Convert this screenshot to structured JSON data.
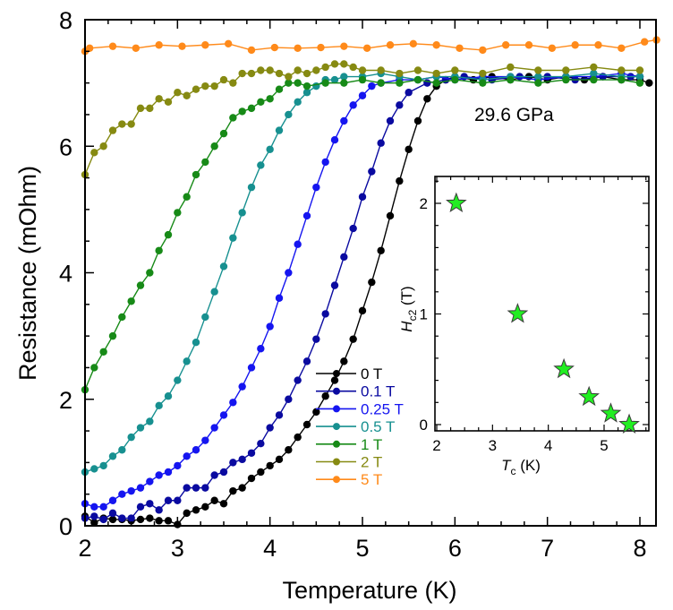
{
  "chart_data": {
    "type": "line",
    "title": "",
    "xlabel": "Temperature (K)",
    "ylabel": "Resistance (mOhm)",
    "xlim": [
      2,
      8.18
    ],
    "ylim": [
      0,
      8
    ],
    "xticks": [
      "2",
      "3",
      "4",
      "5",
      "6",
      "7",
      "8"
    ],
    "yticks": [
      "0",
      "2",
      "4",
      "6",
      "8"
    ],
    "annotation": "29.6 GPa",
    "legend": {
      "position": "lower-center-right"
    },
    "series": [
      {
        "name": "0 T",
        "color": "#000000",
        "x": [
          2.0,
          2.1,
          2.2,
          2.3,
          2.4,
          2.5,
          2.6,
          2.7,
          2.8,
          2.9,
          3.0,
          3.1,
          3.2,
          3.3,
          3.4,
          3.5,
          3.6,
          3.7,
          3.8,
          3.9,
          4.0,
          4.1,
          4.2,
          4.3,
          4.4,
          4.5,
          4.6,
          4.7,
          4.8,
          4.9,
          5.0,
          5.1,
          5.2,
          5.3,
          5.4,
          5.5,
          5.6,
          5.7,
          5.8,
          5.9,
          6.0,
          6.2,
          6.4,
          6.6,
          6.8,
          7.0,
          7.2,
          7.4,
          7.6,
          7.8,
          8.0,
          8.1
        ],
        "y": [
          0.15,
          0.05,
          0.12,
          0.1,
          0.1,
          0.08,
          0.1,
          0.12,
          0.08,
          0.08,
          0.02,
          0.2,
          0.25,
          0.3,
          0.4,
          0.35,
          0.55,
          0.6,
          0.75,
          0.85,
          0.95,
          1.05,
          1.2,
          1.4,
          1.6,
          1.8,
          2.05,
          2.3,
          2.6,
          2.95,
          3.4,
          3.85,
          4.35,
          4.9,
          5.45,
          5.95,
          6.4,
          6.75,
          6.95,
          7.05,
          7.1,
          7.05,
          7.1,
          7.05,
          7.1,
          7.05,
          7.1,
          7.05,
          7.1,
          7.05,
          7.05,
          7.0
        ]
      },
      {
        "name": "0.1 T",
        "color": "#0a0aa0",
        "x": [
          2.0,
          2.1,
          2.2,
          2.3,
          2.4,
          2.5,
          2.6,
          2.7,
          2.8,
          2.9,
          3.0,
          3.1,
          3.2,
          3.3,
          3.4,
          3.5,
          3.6,
          3.7,
          3.8,
          3.9,
          4.0,
          4.1,
          4.2,
          4.3,
          4.4,
          4.5,
          4.6,
          4.7,
          4.8,
          4.9,
          5.0,
          5.1,
          5.2,
          5.3,
          5.4,
          5.5,
          5.7,
          5.9,
          6.1,
          6.4,
          6.7,
          7.0,
          7.3,
          7.6,
          7.9,
          8.0
        ],
        "y": [
          0.12,
          0.15,
          0.1,
          0.2,
          0.12,
          0.12,
          0.3,
          0.35,
          0.25,
          0.4,
          0.4,
          0.6,
          0.6,
          0.6,
          0.8,
          0.85,
          1.0,
          1.05,
          1.15,
          1.3,
          1.55,
          1.75,
          2.0,
          2.3,
          2.6,
          2.95,
          3.35,
          3.8,
          4.25,
          4.7,
          5.2,
          5.6,
          6.05,
          6.4,
          6.65,
          6.85,
          7.0,
          7.05,
          7.1,
          7.05,
          7.1,
          7.1,
          7.05,
          7.1,
          7.1,
          7.1
        ]
      },
      {
        "name": "0.25 T",
        "color": "#1515f0",
        "x": [
          2.0,
          2.1,
          2.2,
          2.3,
          2.4,
          2.5,
          2.6,
          2.7,
          2.8,
          2.9,
          3.0,
          3.1,
          3.2,
          3.3,
          3.4,
          3.5,
          3.6,
          3.7,
          3.8,
          3.9,
          4.0,
          4.1,
          4.2,
          4.3,
          4.4,
          4.5,
          4.6,
          4.7,
          4.8,
          4.9,
          5.0,
          5.1,
          5.2,
          5.4,
          5.6,
          5.8,
          6.0,
          6.3,
          6.6,
          6.9,
          7.2,
          7.5,
          7.8,
          8.0
        ],
        "y": [
          0.35,
          0.3,
          0.3,
          0.4,
          0.5,
          0.55,
          0.6,
          0.7,
          0.8,
          0.85,
          0.95,
          1.1,
          1.2,
          1.35,
          1.55,
          1.75,
          1.95,
          2.2,
          2.5,
          2.8,
          3.15,
          3.6,
          4.0,
          4.45,
          4.9,
          5.35,
          5.75,
          6.1,
          6.4,
          6.65,
          6.8,
          6.95,
          7.0,
          7.05,
          7.05,
          7.1,
          7.05,
          7.1,
          7.1,
          7.05,
          7.1,
          7.1,
          7.15,
          7.1
        ]
      },
      {
        "name": "0.5 T",
        "color": "#179090",
        "x": [
          2.0,
          2.1,
          2.2,
          2.3,
          2.4,
          2.5,
          2.6,
          2.7,
          2.8,
          2.9,
          3.0,
          3.1,
          3.2,
          3.3,
          3.4,
          3.5,
          3.6,
          3.7,
          3.8,
          3.9,
          4.0,
          4.1,
          4.2,
          4.3,
          4.4,
          4.5,
          4.6,
          4.7,
          4.8,
          5.0,
          5.2,
          5.4,
          5.6,
          5.8,
          6.0,
          6.3,
          6.6,
          6.9,
          7.2,
          7.5,
          7.8,
          8.0
        ],
        "y": [
          0.85,
          0.9,
          0.95,
          1.1,
          1.2,
          1.4,
          1.55,
          1.65,
          1.9,
          2.05,
          2.3,
          2.6,
          2.9,
          3.3,
          3.7,
          4.1,
          4.55,
          4.95,
          5.35,
          5.7,
          5.95,
          6.25,
          6.5,
          6.7,
          6.85,
          6.95,
          7.05,
          7.05,
          7.1,
          7.1,
          7.15,
          7.1,
          7.05,
          7.1,
          7.1,
          7.05,
          7.1,
          7.1,
          7.1,
          7.15,
          7.1,
          7.1
        ]
      },
      {
        "name": "1 T",
        "color": "#178a17",
        "x": [
          2.0,
          2.1,
          2.2,
          2.3,
          2.4,
          2.5,
          2.6,
          2.7,
          2.8,
          2.9,
          3.0,
          3.1,
          3.2,
          3.3,
          3.4,
          3.5,
          3.6,
          3.7,
          3.8,
          3.9,
          4.0,
          4.1,
          4.2,
          4.3,
          4.4,
          4.6,
          4.8,
          5.0,
          5.2,
          5.4,
          5.6,
          5.8,
          6.0,
          6.3,
          6.6,
          6.9,
          7.2,
          7.5,
          7.8,
          8.0
        ],
        "y": [
          2.15,
          2.5,
          2.75,
          3.0,
          3.3,
          3.55,
          3.8,
          4.0,
          4.35,
          4.6,
          4.95,
          5.2,
          5.55,
          5.75,
          6.0,
          6.2,
          6.45,
          6.55,
          6.6,
          6.7,
          6.75,
          6.9,
          7.0,
          7.0,
          6.95,
          7.0,
          7.0,
          7.05,
          7.0,
          7.0,
          7.05,
          7.0,
          7.05,
          7.0,
          7.05,
          7.0,
          7.05,
          7.05,
          7.05,
          7.0
        ]
      },
      {
        "name": "2 T",
        "color": "#868a12",
        "x": [
          2.0,
          2.1,
          2.2,
          2.3,
          2.4,
          2.5,
          2.6,
          2.7,
          2.8,
          2.9,
          3.0,
          3.1,
          3.2,
          3.3,
          3.4,
          3.5,
          3.6,
          3.7,
          3.8,
          3.9,
          4.0,
          4.1,
          4.2,
          4.3,
          4.4,
          4.5,
          4.6,
          4.7,
          4.8,
          4.9,
          5.0,
          5.2,
          5.4,
          5.6,
          5.8,
          6.0,
          6.3,
          6.6,
          6.9,
          7.2,
          7.5,
          7.8,
          8.0
        ],
        "y": [
          5.55,
          5.9,
          6.0,
          6.25,
          6.35,
          6.35,
          6.6,
          6.6,
          6.75,
          6.7,
          6.85,
          6.8,
          6.9,
          6.95,
          6.95,
          7.05,
          7.0,
          7.15,
          7.15,
          7.2,
          7.2,
          7.15,
          7.1,
          7.2,
          7.15,
          7.2,
          7.25,
          7.3,
          7.3,
          7.25,
          7.2,
          7.2,
          7.15,
          7.2,
          7.15,
          7.2,
          7.15,
          7.25,
          7.2,
          7.2,
          7.25,
          7.2,
          7.2
        ]
      },
      {
        "name": "5 T",
        "color": "#ff8a1a",
        "x": [
          2.0,
          2.05,
          2.3,
          2.55,
          2.8,
          3.05,
          3.3,
          3.55,
          3.8,
          4.05,
          4.3,
          4.55,
          4.8,
          5.05,
          5.3,
          5.55,
          5.8,
          6.05,
          6.3,
          6.55,
          6.8,
          7.05,
          7.3,
          7.55,
          7.8,
          8.05,
          8.18
        ],
        "y": [
          7.5,
          7.55,
          7.58,
          7.55,
          7.6,
          7.58,
          7.6,
          7.62,
          7.52,
          7.56,
          7.55,
          7.56,
          7.58,
          7.55,
          7.6,
          7.62,
          7.6,
          7.55,
          7.52,
          7.6,
          7.6,
          7.55,
          7.6,
          7.6,
          7.55,
          7.65,
          7.68
        ]
      }
    ],
    "inset": {
      "type": "scatter",
      "marker": "star",
      "marker_color": "#22ee22",
      "xlabel_main": "T",
      "xlabel_sub": "c",
      "xlabel_unit": "(K)",
      "ylabel_main": "H",
      "ylabel_sub": "c2",
      "ylabel_unit": "(T)",
      "xlim": [
        2,
        5.8
      ],
      "ylim": [
        -0.05,
        2.25
      ],
      "xticks": [
        "2",
        "3",
        "4",
        "5"
      ],
      "yticks": [
        "0",
        "1",
        "2"
      ],
      "points": [
        {
          "x": 2.35,
          "y": 2.0
        },
        {
          "x": 3.45,
          "y": 1.0
        },
        {
          "x": 4.28,
          "y": 0.5
        },
        {
          "x": 4.73,
          "y": 0.25
        },
        {
          "x": 5.12,
          "y": 0.1
        },
        {
          "x": 5.45,
          "y": 0.0
        }
      ]
    }
  }
}
